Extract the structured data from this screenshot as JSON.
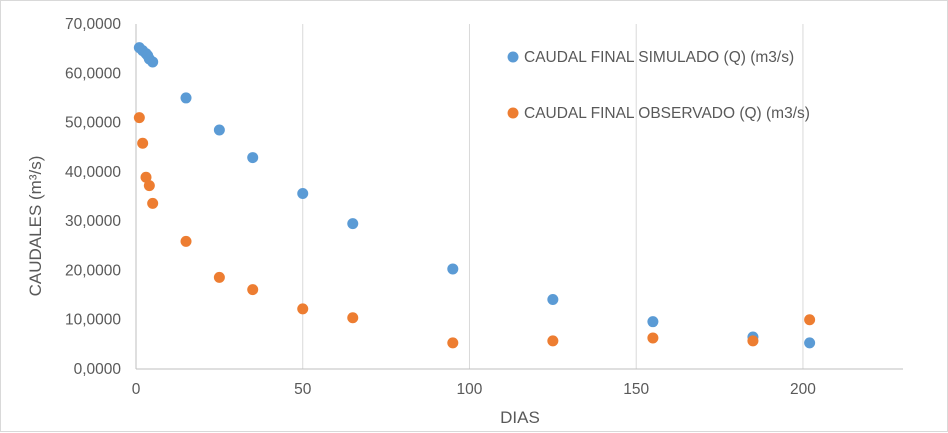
{
  "chart_data": {
    "type": "scatter",
    "xlabel": "DIAS",
    "ylabel": "CAUDALES  (m³/s)",
    "xlim": [
      0,
      230
    ],
    "ylim": [
      0,
      70
    ],
    "xticks": [
      0,
      50,
      100,
      150,
      200
    ],
    "xtick_labels": [
      "0",
      "50",
      "100",
      "150",
      "200"
    ],
    "yticks": [
      0,
      10,
      20,
      30,
      40,
      50,
      60,
      70
    ],
    "ytick_labels": [
      "0,0000",
      "10,0000",
      "20,0000",
      "30,0000",
      "40,0000",
      "50,0000",
      "60,0000",
      "70,0000"
    ],
    "grid": "vertical",
    "legend_position": "top-right",
    "series": [
      {
        "name": "CAUDAL FINAL SIMULADO (Q) (m3/s)",
        "color": "#5b9bd5",
        "points": [
          [
            1,
            65.2
          ],
          [
            2,
            64.6
          ],
          [
            3,
            64.0
          ],
          [
            3.5,
            63.6
          ],
          [
            4,
            62.9
          ],
          [
            5,
            62.3
          ],
          [
            15,
            55.0
          ],
          [
            25,
            48.5
          ],
          [
            35,
            42.9
          ],
          [
            50,
            35.6
          ],
          [
            65,
            29.5
          ],
          [
            95,
            20.3
          ],
          [
            125,
            14.1
          ],
          [
            155,
            9.6
          ],
          [
            185,
            6.5
          ],
          [
            202,
            5.3
          ]
        ]
      },
      {
        "name": "CAUDAL FINAL OBSERVADO (Q) (m3/s)",
        "color": "#ed7d31",
        "points": [
          [
            1,
            51.0
          ],
          [
            2,
            45.8
          ],
          [
            3,
            38.9
          ],
          [
            4,
            37.2
          ],
          [
            5,
            33.6
          ],
          [
            15,
            25.9
          ],
          [
            25,
            18.6
          ],
          [
            35,
            16.1
          ],
          [
            50,
            12.2
          ],
          [
            65,
            10.4
          ],
          [
            95,
            5.3
          ],
          [
            125,
            5.7
          ],
          [
            155,
            6.3
          ],
          [
            185,
            5.7
          ],
          [
            202,
            10.0
          ]
        ]
      }
    ]
  }
}
